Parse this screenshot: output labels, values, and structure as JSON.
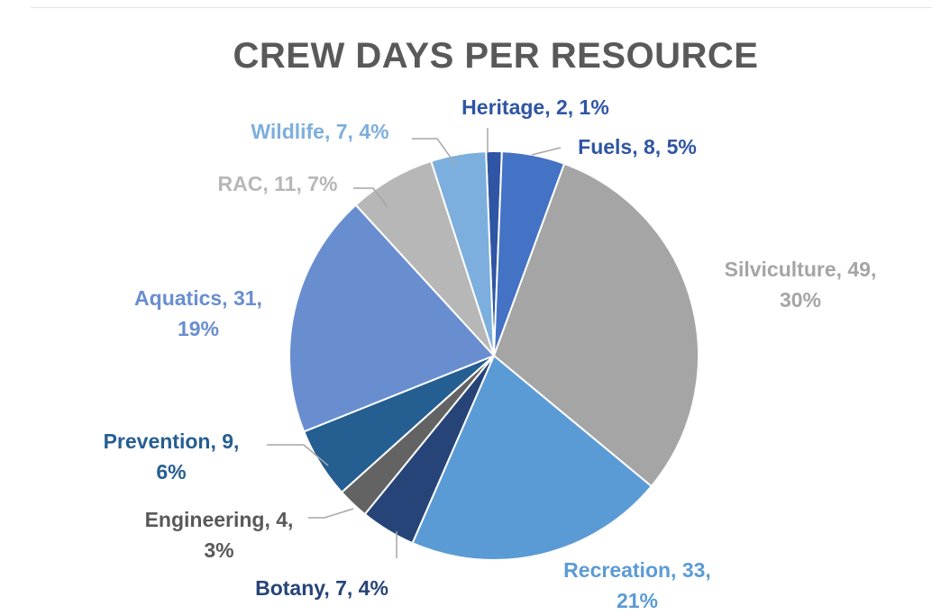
{
  "chart_data": {
    "type": "pie",
    "title": "CREW DAYS PER RESOURCE",
    "start": "Heritage",
    "slices": [
      {
        "name": "Heritage",
        "value": 2,
        "percent": "1%",
        "color": "#2F55A4",
        "label_color": "#2F55A4"
      },
      {
        "name": "Fuels",
        "value": 8,
        "percent": "5%",
        "color": "#4472C4",
        "label_color": "#2F55A4"
      },
      {
        "name": "Silviculture",
        "value": 49,
        "percent": "30%",
        "color": "#A5A5A5",
        "label_color": "#A5A5A5"
      },
      {
        "name": "Recreation",
        "value": 33,
        "percent": "21%",
        "color": "#5B9BD5",
        "label_color": "#5B9BD5"
      },
      {
        "name": "Botany",
        "value": 7,
        "percent": "4%",
        "color": "#264478",
        "label_color": "#264478"
      },
      {
        "name": "Engineering",
        "value": 4,
        "percent": "3%",
        "color": "#636363",
        "label_color": "#595959"
      },
      {
        "name": "Prevention",
        "value": 9,
        "percent": "6%",
        "color": "#255E91",
        "label_color": "#255E91"
      },
      {
        "name": "Aquatics",
        "value": 31,
        "percent": "19%",
        "color": "#698ED0",
        "label_color": "#698ED0"
      },
      {
        "name": "RAC",
        "value": 11,
        "percent": "7%",
        "color": "#B7B7B7",
        "label_color": "#B7B7B7"
      },
      {
        "name": "Wildlife",
        "value": 7,
        "percent": "4%",
        "color": "#7CAFDD",
        "label_color": "#7CAFDD"
      }
    ],
    "labels": {
      "Heritage": [
        "Heritage, 2, 1%"
      ],
      "Fuels": [
        "Fuels, 8, 5%"
      ],
      "Silviculture": [
        "Silviculture, 49,",
        "30%"
      ],
      "Recreation": [
        "Recreation, 33,",
        "21%"
      ],
      "Botany": [
        "Botany, 7, 4%"
      ],
      "Engineering": [
        "Engineering, 4,",
        "3%"
      ],
      "Prevention": [
        "Prevention, 9,",
        "6%"
      ],
      "Aquatics": [
        "Aquatics, 31,",
        "19%"
      ],
      "RAC": [
        "RAC, 11, 7%"
      ],
      "Wildlife": [
        "Wildlife, 7, 4%"
      ]
    }
  }
}
